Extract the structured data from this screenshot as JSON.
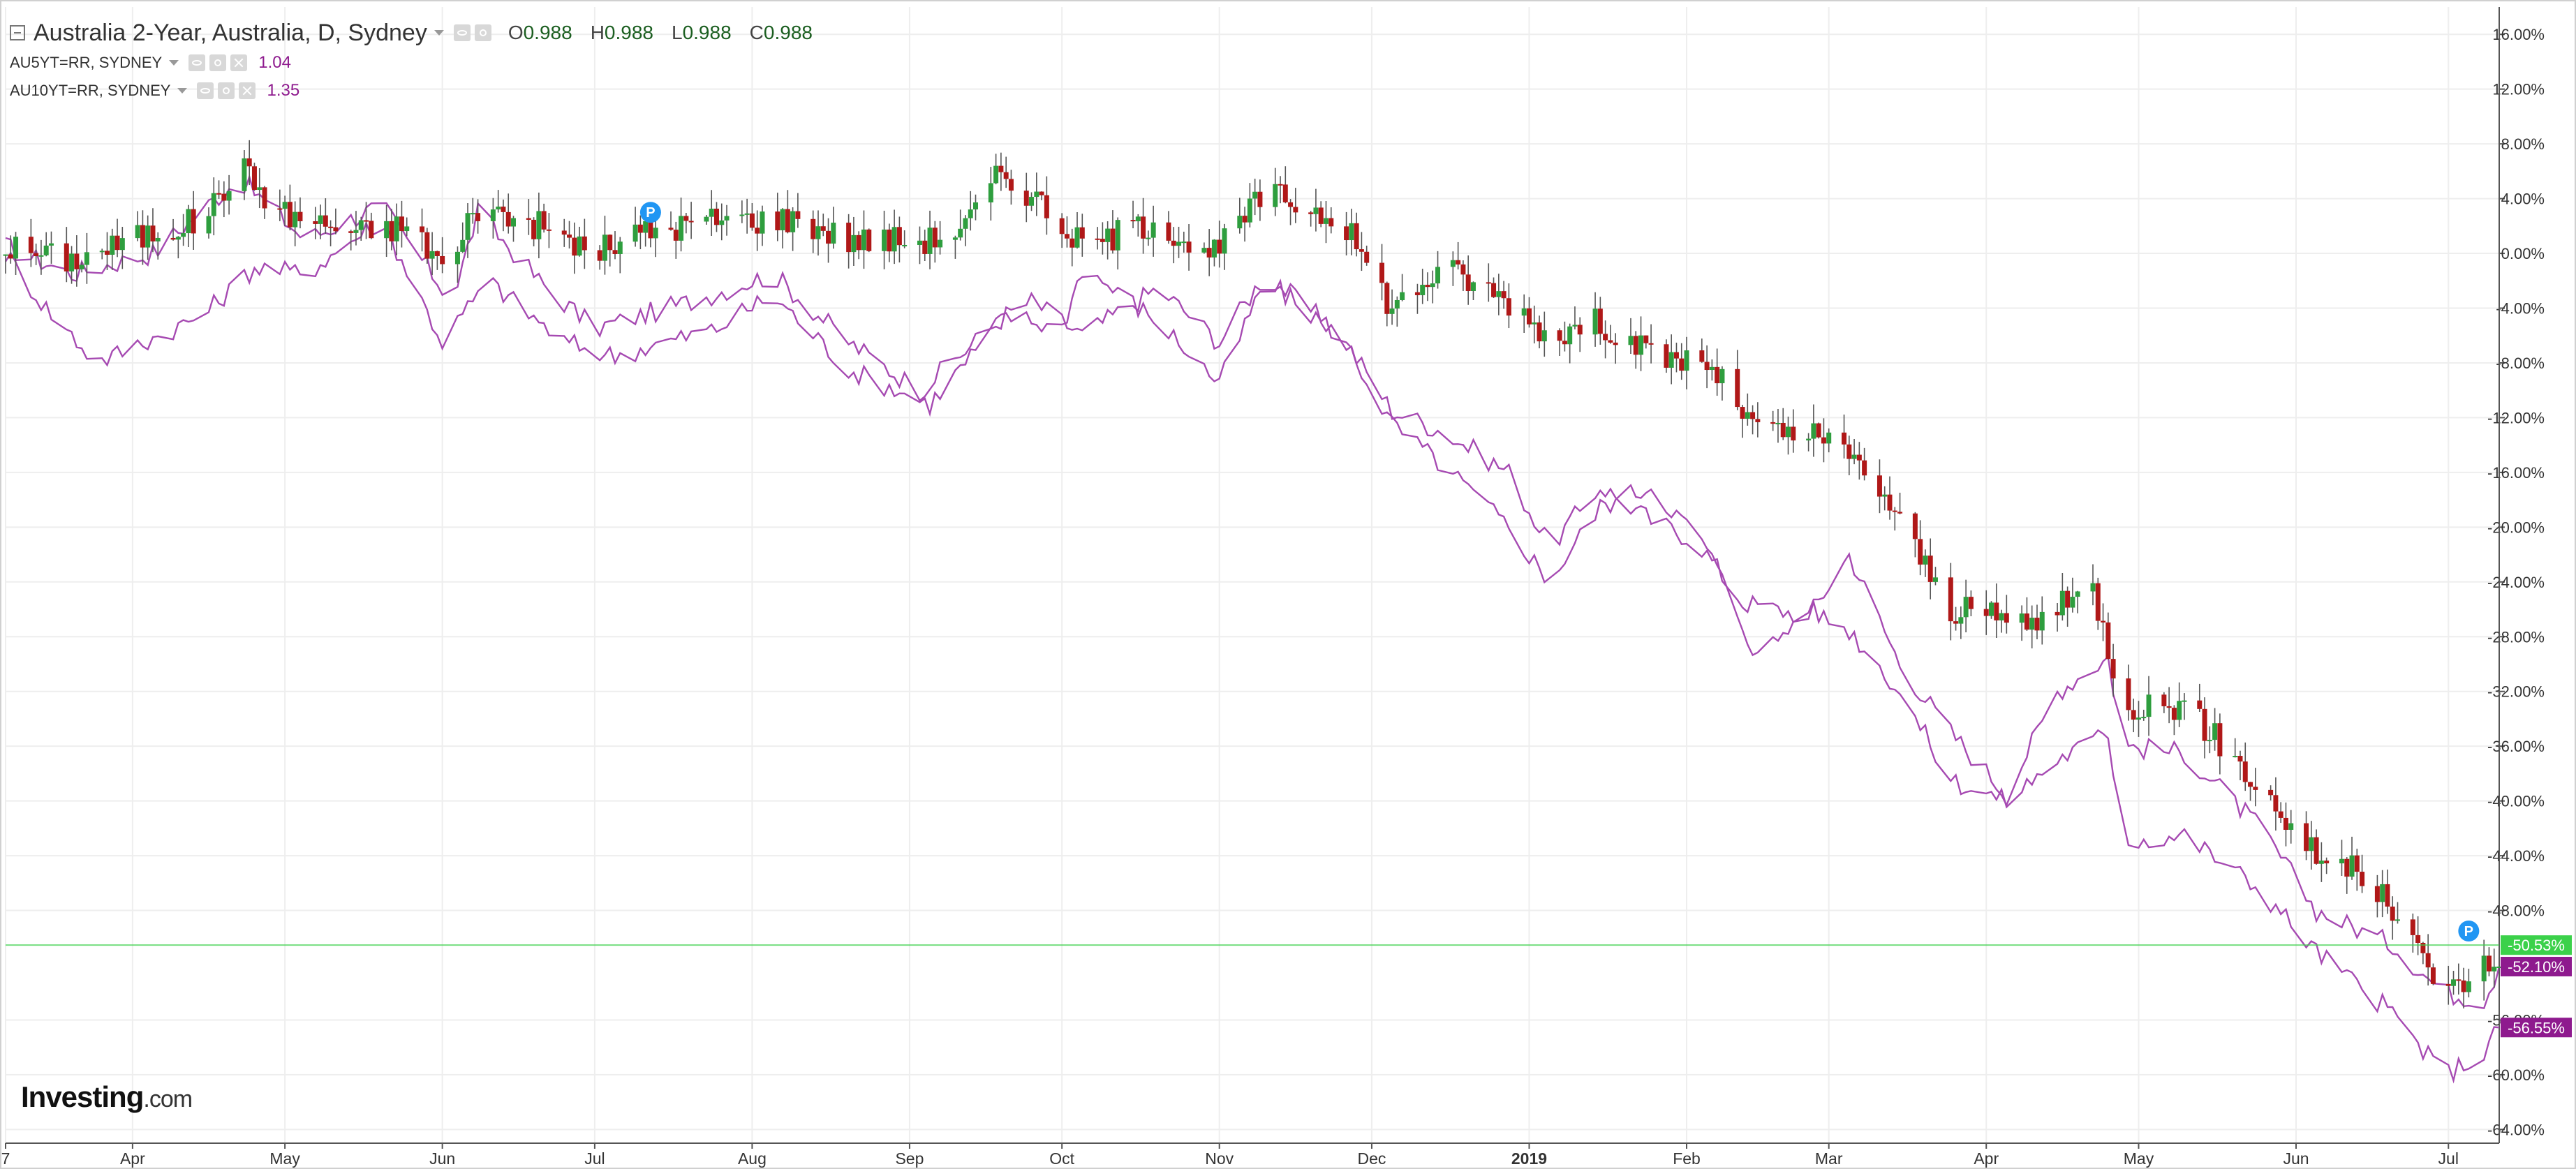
{
  "legend": {
    "main_title": "Australia 2-Year, Australia, D, Sydney",
    "open_label": "O",
    "open": "0.988",
    "high_label": "H",
    "high": "0.988",
    "low_label": "L",
    "low": "0.988",
    "close_label": "C",
    "close": "0.988",
    "series": [
      {
        "label": "AU5YT=RR, SYDNEY",
        "value": "1.04"
      },
      {
        "label": "AU10YT=RR, SYDNEY",
        "value": "1.35"
      }
    ]
  },
  "logo": {
    "name": "Investing",
    "suffix": ".com"
  },
  "colors": {
    "up": "#2e9e3e",
    "down": "#b01818",
    "line": "#a64ab2",
    "grid": "#eeeeee",
    "axis": "#555555",
    "current": "#3bd14a",
    "overlay_badge": "#8e1a8e",
    "marker": "#2196f3"
  },
  "chart_data": {
    "type": "line",
    "title": "Australia 2-Year, Australia, D, Sydney",
    "y_unit": "% change",
    "ylim": [
      -65,
      18
    ],
    "y_ticks": [
      16,
      12,
      8,
      4,
      0,
      -4,
      -8,
      -12,
      -16,
      -20,
      -24,
      -28,
      -32,
      -36,
      -40,
      -44,
      -48,
      -56,
      -60,
      -64
    ],
    "y_tick_labels": [
      "16.00%",
      "12.00%",
      "8.00%",
      "4.00%",
      "0.00%",
      "-4.00%",
      "-8.00%",
      "-12.00%",
      "-16.00%",
      "-20.00%",
      "-24.00%",
      "-28.00%",
      "-32.00%",
      "-36.00%",
      "-40.00%",
      "-44.00%",
      "-48.00%",
      "-56.00%",
      "-60.00%",
      "-64.00%"
    ],
    "x_start": "2018-03-07",
    "x_end": "2019-07-11",
    "x_ticks": [
      {
        "label": "7",
        "date": "2018-03-07",
        "bold": false
      },
      {
        "label": "Apr",
        "date": "2018-04-01",
        "bold": false
      },
      {
        "label": "May",
        "date": "2018-05-01",
        "bold": false
      },
      {
        "label": "Jun",
        "date": "2018-06-01",
        "bold": false
      },
      {
        "label": "Jul",
        "date": "2018-07-01",
        "bold": false
      },
      {
        "label": "Aug",
        "date": "2018-08-01",
        "bold": false
      },
      {
        "label": "Sep",
        "date": "2018-09-01",
        "bold": false
      },
      {
        "label": "Oct",
        "date": "2018-10-01",
        "bold": false
      },
      {
        "label": "Nov",
        "date": "2018-11-01",
        "bold": false
      },
      {
        "label": "Dec",
        "date": "2018-12-01",
        "bold": false
      },
      {
        "label": "2019",
        "date": "2019-01-01",
        "bold": true
      },
      {
        "label": "Feb",
        "date": "2019-02-01",
        "bold": false
      },
      {
        "label": "Mar",
        "date": "2019-03-01",
        "bold": false
      },
      {
        "label": "Apr",
        "date": "2019-04-01",
        "bold": false
      },
      {
        "label": "May",
        "date": "2019-05-01",
        "bold": false
      },
      {
        "label": "Jun",
        "date": "2019-06-01",
        "bold": false
      },
      {
        "label": "Jul",
        "date": "2019-07-01",
        "bold": false
      }
    ],
    "series": [
      {
        "name": "Australia 2-Year, Australia, D, Sydney",
        "style": "candlestick",
        "anchors": [
          [
            "2018-03-07",
            0.5
          ],
          [
            "2018-03-20",
            -0.5
          ],
          [
            "2018-04-05",
            1.5
          ],
          [
            "2018-04-15",
            2.5
          ],
          [
            "2018-04-22",
            6.5
          ],
          [
            "2018-04-30",
            3.0
          ],
          [
            "2018-05-15",
            1.5
          ],
          [
            "2018-05-25",
            2.0
          ],
          [
            "2018-06-03",
            -1.5
          ],
          [
            "2018-06-07",
            3.5
          ],
          [
            "2018-06-20",
            2.0
          ],
          [
            "2018-07-01",
            0.0
          ],
          [
            "2018-07-10",
            1.5
          ],
          [
            "2018-07-25",
            2.5
          ],
          [
            "2018-08-10",
            2.5
          ],
          [
            "2018-08-20",
            1.0
          ],
          [
            "2018-09-05",
            1.0
          ],
          [
            "2018-09-12",
            2.0
          ],
          [
            "2018-09-19",
            6.0
          ],
          [
            "2018-09-26",
            4.0
          ],
          [
            "2018-10-05",
            0.5
          ],
          [
            "2018-10-20",
            2.5
          ],
          [
            "2018-10-30",
            -0.5
          ],
          [
            "2018-11-10",
            4.5
          ],
          [
            "2018-11-25",
            2.5
          ],
          [
            "2018-12-05",
            -4.0
          ],
          [
            "2018-12-15",
            -1.0
          ],
          [
            "2018-12-28",
            -3.5
          ],
          [
            "2019-01-05",
            -6.0
          ],
          [
            "2019-01-15",
            -5.0
          ],
          [
            "2019-01-25",
            -7.5
          ],
          [
            "2019-02-05",
            -8.0
          ],
          [
            "2019-02-15",
            -13.0
          ],
          [
            "2019-02-28",
            -13.5
          ],
          [
            "2019-03-10",
            -16.5
          ],
          [
            "2019-03-25",
            -26.0
          ],
          [
            "2019-04-10",
            -27.0
          ],
          [
            "2019-04-22",
            -24.5
          ],
          [
            "2019-04-28",
            -33.0
          ],
          [
            "2019-05-10",
            -33.0
          ],
          [
            "2019-05-20",
            -37.0
          ],
          [
            "2019-06-05",
            -44.0
          ],
          [
            "2019-06-15",
            -45.5
          ],
          [
            "2019-06-25",
            -51.0
          ],
          [
            "2019-07-01",
            -54.0
          ],
          [
            "2019-07-08",
            -52.0
          ],
          [
            "2019-07-11",
            -52.1
          ]
        ]
      },
      {
        "name": "AU5YT=RR, SYDNEY",
        "style": "line",
        "anchors": [
          [
            "2018-03-07",
            0.5
          ],
          [
            "2018-03-20",
            -1.5
          ],
          [
            "2018-04-05",
            0.0
          ],
          [
            "2018-04-22",
            5.5
          ],
          [
            "2018-05-05",
            1.0
          ],
          [
            "2018-05-20",
            3.5
          ],
          [
            "2018-06-03",
            -3.5
          ],
          [
            "2018-06-08",
            3.0
          ],
          [
            "2018-06-20",
            -2.0
          ],
          [
            "2018-07-01",
            -5.5
          ],
          [
            "2018-07-20",
            -3.5
          ],
          [
            "2018-08-05",
            -1.5
          ],
          [
            "2018-08-20",
            -6.5
          ],
          [
            "2018-09-03",
            -10.0
          ],
          [
            "2018-09-20",
            -4.5
          ],
          [
            "2018-09-25",
            -3.5
          ],
          [
            "2018-10-05",
            -6.0
          ],
          [
            "2018-10-20",
            -2.5
          ],
          [
            "2018-11-01",
            -6.5
          ],
          [
            "2018-11-10",
            -1.5
          ],
          [
            "2018-11-25",
            -6.0
          ],
          [
            "2018-12-05",
            -11.5
          ],
          [
            "2018-12-15",
            -13.0
          ],
          [
            "2018-12-28",
            -16.0
          ],
          [
            "2019-01-05",
            -21.5
          ],
          [
            "2019-01-15",
            -17.0
          ],
          [
            "2019-01-25",
            -19.5
          ],
          [
            "2019-02-03",
            -21.0
          ],
          [
            "2019-02-12",
            -25.5
          ],
          [
            "2019-02-25",
            -26.5
          ],
          [
            "2019-03-05",
            -22.0
          ],
          [
            "2019-03-15",
            -30.0
          ],
          [
            "2019-03-25",
            -35.0
          ],
          [
            "2019-04-05",
            -39.5
          ],
          [
            "2019-04-15",
            -32.0
          ],
          [
            "2019-04-25",
            -29.5
          ],
          [
            "2019-04-28",
            -36.0
          ],
          [
            "2019-05-10",
            -36.5
          ],
          [
            "2019-05-25",
            -42.0
          ],
          [
            "2019-06-05",
            -48.0
          ],
          [
            "2019-06-20",
            -50.5
          ],
          [
            "2019-06-30",
            -54.0
          ],
          [
            "2019-07-08",
            -54.5
          ],
          [
            "2019-07-11",
            -52.1
          ]
        ]
      },
      {
        "name": "AU10YT=RR, SYDNEY",
        "style": "line",
        "anchors": [
          [
            "2018-03-07",
            0.0
          ],
          [
            "2018-03-15",
            -4.0
          ],
          [
            "2018-03-25",
            -8.0
          ],
          [
            "2018-04-15",
            -4.5
          ],
          [
            "2018-04-25",
            -1.0
          ],
          [
            "2018-05-05",
            -1.5
          ],
          [
            "2018-05-20",
            2.5
          ],
          [
            "2018-06-01",
            -6.5
          ],
          [
            "2018-06-10",
            -2.0
          ],
          [
            "2018-06-25",
            -6.5
          ],
          [
            "2018-07-05",
            -7.5
          ],
          [
            "2018-07-25",
            -5.5
          ],
          [
            "2018-08-05",
            -3.0
          ],
          [
            "2018-08-20",
            -8.5
          ],
          [
            "2018-09-05",
            -11.0
          ],
          [
            "2018-09-20",
            -4.5
          ],
          [
            "2018-10-01",
            -5.5
          ],
          [
            "2018-10-05",
            -1.0
          ],
          [
            "2018-10-20",
            -5.0
          ],
          [
            "2018-11-01",
            -9.5
          ],
          [
            "2018-11-10",
            -2.0
          ],
          [
            "2018-11-25",
            -6.0
          ],
          [
            "2018-12-05",
            -12.5
          ],
          [
            "2018-12-15",
            -15.5
          ],
          [
            "2018-12-28",
            -20.0
          ],
          [
            "2019-01-05",
            -24.0
          ],
          [
            "2019-01-15",
            -18.5
          ],
          [
            "2019-01-25",
            -17.0
          ],
          [
            "2019-02-05",
            -21.5
          ],
          [
            "2019-02-15",
            -29.5
          ],
          [
            "2019-02-25",
            -26.0
          ],
          [
            "2019-03-05",
            -27.5
          ],
          [
            "2019-03-15",
            -32.0
          ],
          [
            "2019-03-25",
            -38.5
          ],
          [
            "2019-04-05",
            -40.0
          ],
          [
            "2019-04-15",
            -37.0
          ],
          [
            "2019-04-25",
            -35.0
          ],
          [
            "2019-04-28",
            -43.0
          ],
          [
            "2019-05-10",
            -42.5
          ],
          [
            "2019-05-25",
            -46.5
          ],
          [
            "2019-06-05",
            -51.0
          ],
          [
            "2019-06-20",
            -55.5
          ],
          [
            "2019-06-30",
            -60.0
          ],
          [
            "2019-07-08",
            -58.5
          ],
          [
            "2019-07-11",
            -56.55
          ]
        ]
      }
    ],
    "price_markers": [
      {
        "value": -50.53,
        "label": "-50.53%",
        "color": "#3bd14a",
        "line": true
      },
      {
        "value": -52.1,
        "label": "-52.10%",
        "color": "#8e1a8e",
        "line": false
      },
      {
        "value": -56.55,
        "label": "-56.55%",
        "color": "#8e1a8e",
        "line": false
      }
    ],
    "event_markers": [
      {
        "date": "2018-07-12",
        "value": 3.0,
        "label": "P"
      },
      {
        "date": "2019-07-05",
        "value": -49.5,
        "label": "P"
      }
    ]
  }
}
